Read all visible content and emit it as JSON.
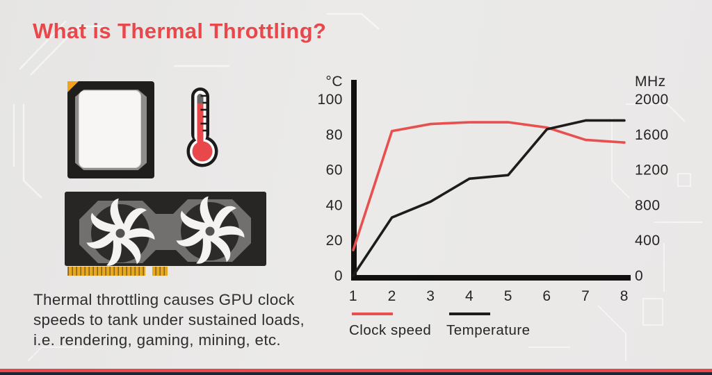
{
  "title": "What is Thermal Throttling?",
  "description": {
    "lines": [
      "Thermal throttling causes GPU clock",
      "speeds to tank under sustained loads,",
      "i.e. rendering, gaming, mining, etc."
    ]
  },
  "icons": {
    "cpu_chip": "cpu-chip-icon",
    "thermometer": "thermometer-icon",
    "gpu_card": "gpu-fan-card-icon"
  },
  "colors": {
    "accent_red": "#e8484b",
    "line_black": "#1d1c1b",
    "background": "#e9e8e7",
    "footer_navy": "#1d2533",
    "connector_gold": "#e8a81f"
  },
  "chart_data": {
    "type": "line",
    "x": [
      1,
      2,
      3,
      4,
      5,
      6,
      7,
      8
    ],
    "x_ticks": [
      "1",
      "2",
      "3",
      "4",
      "5",
      "6",
      "7",
      "8"
    ],
    "left_axis": {
      "label": "°C",
      "ticks": [
        100,
        80,
        60,
        40,
        20,
        0
      ],
      "range": [
        0,
        100
      ]
    },
    "right_axis": {
      "label": "MHz",
      "ticks": [
        2000,
        1600,
        1200,
        800,
        400,
        0
      ],
      "range": [
        0,
        2000
      ]
    },
    "axis_color": "#11100f",
    "grid": false,
    "legend_position": "bottom",
    "series": [
      {
        "name": "Clock speed",
        "color": "#e8504f",
        "axis": "right",
        "unit": "MHz",
        "values": [
          290,
          1640,
          1720,
          1740,
          1740,
          1680,
          1540,
          1510
        ]
      },
      {
        "name": "Temperature",
        "color": "#1d1c1b",
        "axis": "left",
        "unit": "°C",
        "values": [
          0,
          33,
          42,
          55,
          57,
          83,
          88,
          88
        ]
      }
    ]
  }
}
